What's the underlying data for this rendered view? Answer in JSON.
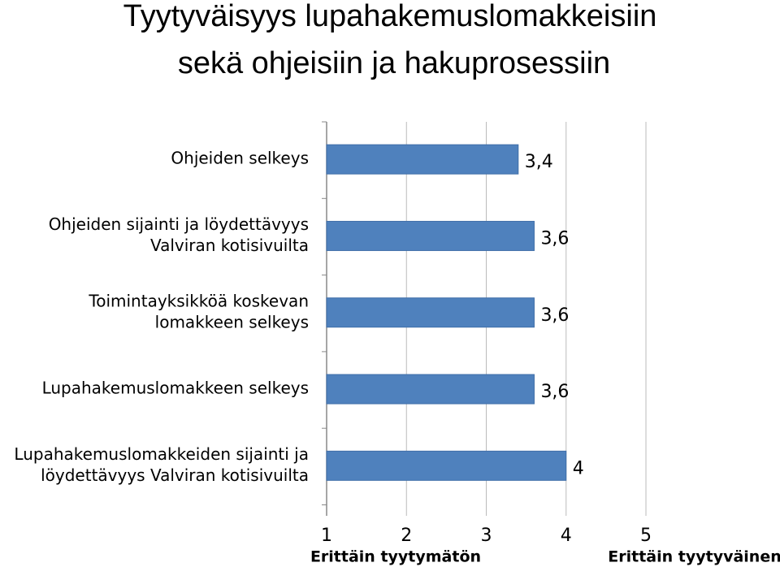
{
  "chart_data": {
    "type": "barh",
    "title": [
      "Tyytyväisyys lupahakemuslomakkeisiin",
      "sekä ohjeisiin ja hakuprosessiin"
    ],
    "categories": [
      [
        "Ohjeiden selkeys"
      ],
      [
        "Ohjeiden sijainti ja löydettävyys",
        "Valviran kotisivuilta"
      ],
      [
        "Toimintayksikköä koskevan",
        "lomakkeen selkeys"
      ],
      [
        "Lupahakemuslomakkeen selkeys"
      ],
      [
        "Lupahakemuslomakkeiden sijainti ja",
        "löydettävyys Valviran kotisivuilta"
      ]
    ],
    "values": [
      3.4,
      3.6,
      3.6,
      3.6,
      4
    ],
    "value_labels": [
      "3,4",
      "3,6",
      "3,6",
      "3,6",
      "4"
    ],
    "color": "#4f81bd",
    "xlim": [
      1,
      5
    ],
    "xticks": [
      1,
      2,
      3,
      4,
      5
    ],
    "x_end_labels": [
      "Erittäin tyytymätön",
      "Erittäin tyytyväinen"
    ],
    "grid": true
  }
}
